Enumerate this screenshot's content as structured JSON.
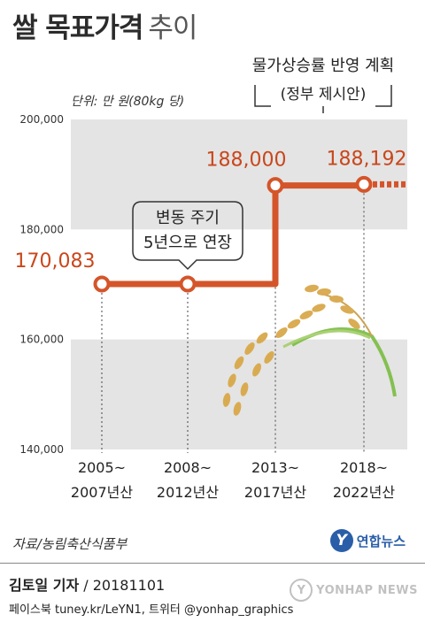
{
  "title": {
    "main": "쌀 목표가격",
    "sub": "추이"
  },
  "unit_label": "단위: 만 원(80kg 당)",
  "annotation_plan": {
    "line1": "물가상승률 반영 계획",
    "line2": "(정부 제시안)"
  },
  "annotation_cycle": {
    "line1": "변동 주기",
    "line2": "5년으로 연장"
  },
  "source": "자료/농림축산식품부",
  "logo_text": "연합뉴스",
  "credit": {
    "author": "김토일 기자",
    "date": "20181101"
  },
  "social": "페이스북 tuney.kr/LeYN1, 트위터 @yonhap_graphics",
  "watermark": "YONHAP NEWS",
  "colors": {
    "line": "#d4552a",
    "band": "#e4e4e4",
    "label_orange": "#c9471c"
  },
  "chart_data": {
    "type": "line",
    "title": "쌀 목표가격 추이",
    "categories": [
      {
        "line1": "2005~",
        "line2": "2007년산"
      },
      {
        "line1": "2008~",
        "line2": "2012년산"
      },
      {
        "line1": "2013~",
        "line2": "2017년산"
      },
      {
        "line1": "2018~",
        "line2": "2022년산"
      }
    ],
    "values": [
      170083,
      170083,
      188000,
      188192
    ],
    "value_labels": [
      "170,083",
      "",
      "188,000",
      "188,192"
    ],
    "projected_extension": true,
    "ylim": [
      140000,
      200000
    ],
    "yticks": [
      {
        "value": 140000,
        "label": "140,000"
      },
      {
        "value": 160000,
        "label": "160,000"
      },
      {
        "value": 180000,
        "label": "180,000"
      },
      {
        "value": 200000,
        "label": "200,000"
      }
    ],
    "bands": [
      [
        180000,
        200000
      ],
      [
        140000,
        160000
      ]
    ],
    "step_line": true,
    "grid": false
  }
}
